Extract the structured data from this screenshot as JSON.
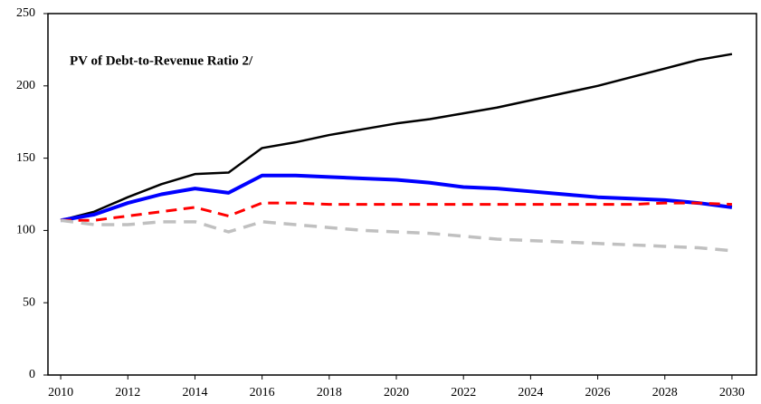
{
  "chart_data": {
    "type": "line",
    "title": "PV of Debt-to-Revenue  Ratio 2/",
    "x": [
      2010,
      2011,
      2012,
      2013,
      2014,
      2015,
      2016,
      2017,
      2018,
      2019,
      2020,
      2021,
      2022,
      2023,
      2024,
      2025,
      2026,
      2027,
      2028,
      2029,
      2030
    ],
    "series": [
      {
        "color": "#000000",
        "style": "solid",
        "linewidth": 2.5,
        "values": [
          107,
          113,
          123,
          132,
          139,
          140,
          157,
          161,
          166,
          170,
          174,
          177,
          181,
          185,
          190,
          195,
          200,
          206,
          212,
          218,
          222
        ]
      },
      {
        "color": "#0000ff",
        "style": "solid",
        "linewidth": 4,
        "values": [
          107,
          111,
          119,
          125,
          129,
          126,
          138,
          138,
          137,
          136,
          135,
          133,
          130,
          129,
          127,
          125,
          123,
          122,
          121,
          119,
          116
        ]
      },
      {
        "color": "#ff0000",
        "style": "dashed",
        "linewidth": 3,
        "values": [
          107,
          107,
          110,
          113,
          116,
          110,
          119,
          119,
          118,
          118,
          118,
          118,
          118,
          118,
          118,
          118,
          118,
          118,
          119,
          119,
          118
        ]
      },
      {
        "color": "#c0c0c0",
        "style": "dashed",
        "linewidth": 3.5,
        "values": [
          107,
          104,
          104,
          106,
          106,
          99,
          106,
          104,
          102,
          100,
          99,
          98,
          96,
          94,
          93,
          92,
          91,
          90,
          89,
          88,
          86
        ]
      }
    ],
    "xlim": [
      2009.62,
      2030.73
    ],
    "xticks": [
      2010,
      2012,
      2014,
      2016,
      2018,
      2020,
      2022,
      2024,
      2026,
      2028,
      2030
    ],
    "ylim": [
      0,
      250
    ],
    "yticks": [
      0,
      50,
      100,
      150,
      200,
      250
    ],
    "grid": false
  }
}
